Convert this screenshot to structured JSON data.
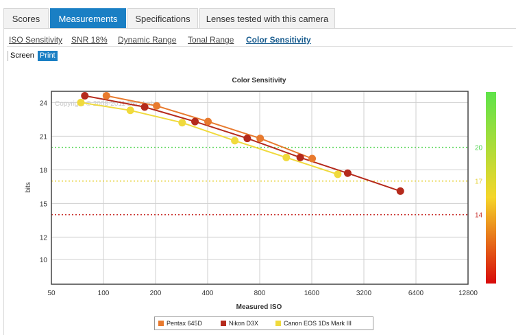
{
  "tabs": [
    {
      "label": "Scores",
      "active": false
    },
    {
      "label": "Measurements",
      "active": true
    },
    {
      "label": "Specifications",
      "active": false
    },
    {
      "label": "Lenses tested with this camera",
      "active": false
    }
  ],
  "subnav": [
    {
      "label": "ISO Sensitivity",
      "active": false
    },
    {
      "label": "SNR 18%",
      "active": false
    },
    {
      "label": "Dynamic Range",
      "active": false
    },
    {
      "label": "Tonal Range",
      "active": false
    },
    {
      "label": "Color Sensitivity",
      "active": true
    }
  ],
  "view_toggle": {
    "screen": "Screen",
    "print": "Print",
    "selected": "print"
  },
  "chart_data": {
    "type": "line",
    "title": "Color Sensitivity",
    "xlabel": "Measured ISO",
    "ylabel": "bits",
    "x_scale": "log2",
    "xlim": [
      50,
      12800
    ],
    "ylim": [
      7.8,
      25
    ],
    "x_ticks": [
      "50",
      "100",
      "200",
      "400",
      "800",
      "1600",
      "3200",
      "6400",
      "12800"
    ],
    "y_ticks": [
      10,
      12,
      15,
      18,
      21,
      24
    ],
    "watermark": "Copyright © 2008-2011 DxO Labs",
    "reference_lines": [
      {
        "value": 20,
        "label": "20",
        "color": "#55d655"
      },
      {
        "value": 17,
        "label": "17",
        "color": "#e6d23a"
      },
      {
        "value": 14,
        "label": "14",
        "color": "#c9302c"
      }
    ],
    "colorbar": {
      "top": "#5ee34a",
      "middle": "#f5d62a",
      "bottom": "#d80a0a"
    },
    "series": [
      {
        "name": "Pentax 645D",
        "color": "#e87a2e",
        "points": [
          [
            104,
            24.6
          ],
          [
            203,
            23.7
          ],
          [
            402,
            22.3
          ],
          [
            805,
            20.8
          ],
          [
            1608,
            19.0
          ]
        ]
      },
      {
        "name": "Nikon D3X",
        "color": "#b52a1c",
        "points": [
          [
            78,
            24.6
          ],
          [
            173,
            23.6
          ],
          [
            338,
            22.3
          ],
          [
            678,
            20.8
          ],
          [
            1372,
            19.1
          ],
          [
            2581,
            17.7
          ],
          [
            5200,
            16.1
          ]
        ]
      },
      {
        "name": "Canon EOS 1Ds Mark III",
        "color": "#f0da3c",
        "points": [
          [
            74,
            24.0
          ],
          [
            143,
            23.3
          ],
          [
            285,
            22.2
          ],
          [
            574,
            20.6
          ],
          [
            1140,
            19.1
          ],
          [
            2260,
            17.6
          ]
        ]
      }
    ]
  }
}
